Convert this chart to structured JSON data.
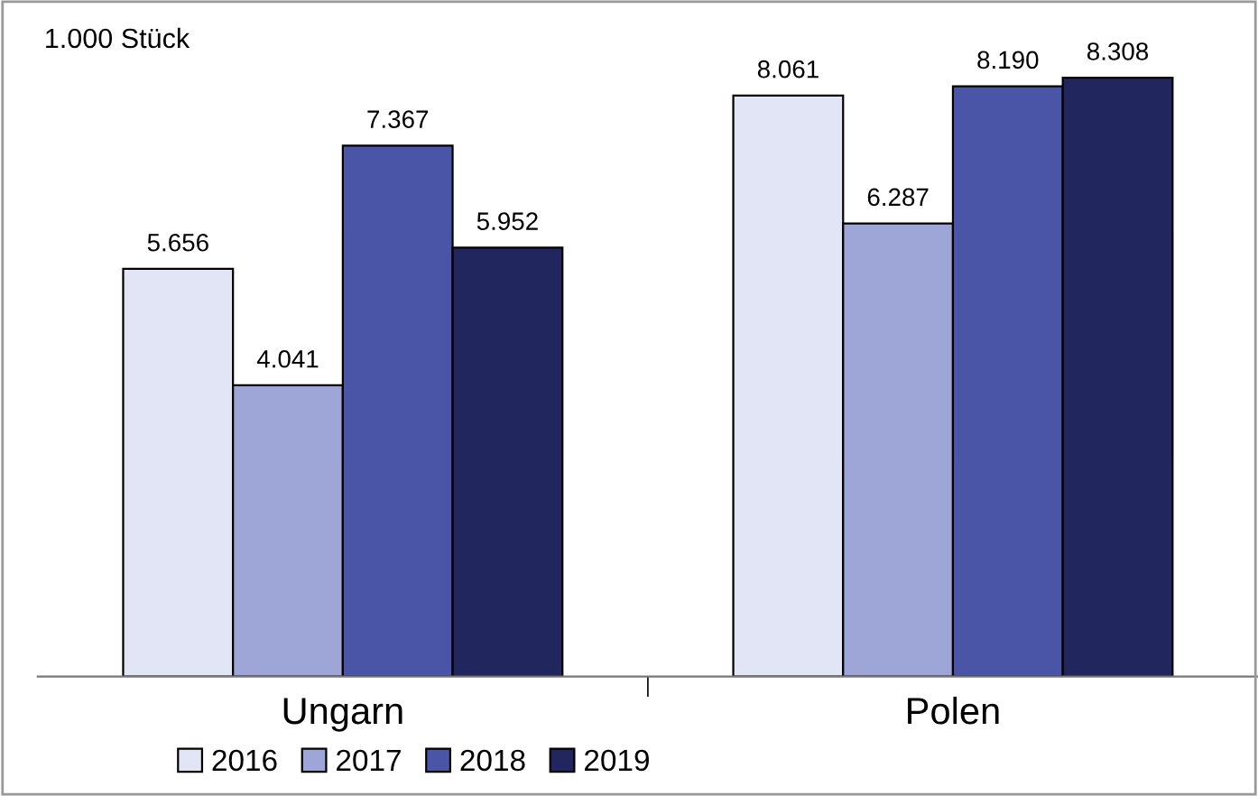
{
  "chart_data": {
    "type": "bar",
    "ylabel": "1.000 Stück",
    "categories": [
      "Ungarn",
      "Polen"
    ],
    "legend": "bottom",
    "series": [
      {
        "name": "2016",
        "color": "#e2e5f5",
        "values": [
          5656,
          8061
        ],
        "value_labels": [
          "5.656",
          "8.061"
        ]
      },
      {
        "name": "2017",
        "color": "#9ea6d8",
        "values": [
          4041,
          6287
        ],
        "value_labels": [
          "4.041",
          "6.287"
        ]
      },
      {
        "name": "2018",
        "color": "#4b55a8",
        "values": [
          7367,
          8190
        ],
        "value_labels": [
          "7.367",
          "8.190"
        ]
      },
      {
        "name": "2019",
        "color": "#22265e",
        "values": [
          5952,
          8308
        ],
        "value_labels": [
          "5.952",
          "8.308"
        ]
      }
    ]
  }
}
